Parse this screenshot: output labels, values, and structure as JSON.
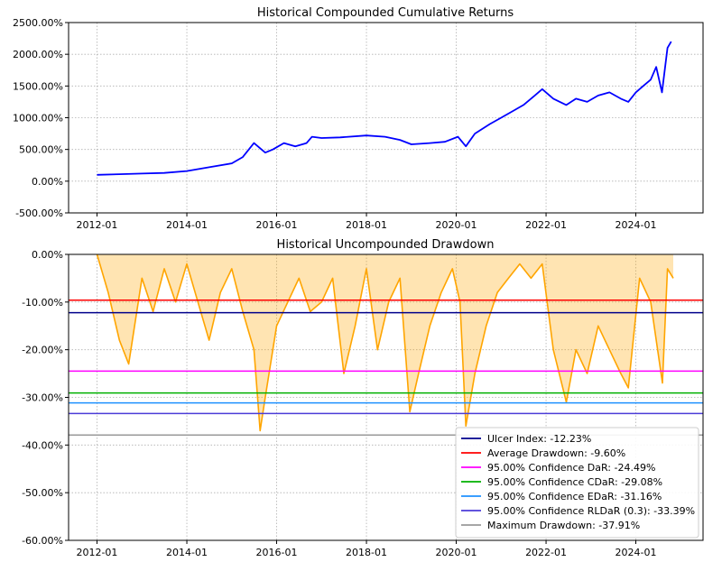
{
  "chart_data": [
    {
      "type": "line",
      "title": "Historical Compounded Cumulative Returns",
      "xlabel": "",
      "ylabel": "",
      "x_ticks": [
        "2012-01",
        "2014-01",
        "2016-01",
        "2018-01",
        "2020-01",
        "2022-01",
        "2024-01"
      ],
      "y_ticks": [
        "-500.00%",
        "0.00%",
        "500.00%",
        "1000.00%",
        "1500.00%",
        "2000.00%",
        "2500.00%"
      ],
      "ylim": [
        -500,
        2500
      ],
      "xlim": [
        "2011-05-15",
        "2025-07-01"
      ],
      "grid": true,
      "series": [
        {
          "color": "#0000ff",
          "x": [
            "2012-01-01",
            "2012-07-01",
            "2013-01-01",
            "2013-07-01",
            "2014-01-01",
            "2014-07-01",
            "2015-01-01",
            "2015-04-01",
            "2015-07-01",
            "2015-10-01",
            "2015-12-01",
            "2016-03-01",
            "2016-06-01",
            "2016-09-01",
            "2016-10-15",
            "2017-01-01",
            "2017-06-01",
            "2018-01-01",
            "2018-06-01",
            "2018-10-01",
            "2019-01-01",
            "2019-06-01",
            "2019-10-01",
            "2020-01-15",
            "2020-03-20",
            "2020-06-01",
            "2020-10-01",
            "2021-01-01",
            "2021-04-01",
            "2021-07-01",
            "2021-10-01",
            "2021-12-01",
            "2022-03-01",
            "2022-06-15",
            "2022-09-01",
            "2022-12-01",
            "2023-03-01",
            "2023-06-01",
            "2023-09-01",
            "2023-11-01",
            "2024-01-01",
            "2024-03-01",
            "2024-05-01",
            "2024-06-15",
            "2024-08-01",
            "2024-09-15",
            "2024-10-15"
          ],
          "y": [
            100,
            110,
            120,
            130,
            160,
            220,
            280,
            380,
            600,
            450,
            500,
            600,
            550,
            600,
            700,
            680,
            690,
            720,
            700,
            650,
            580,
            600,
            620,
            700,
            550,
            750,
            900,
            1000,
            1100,
            1200,
            1350,
            1450,
            1300,
            1200,
            1300,
            1250,
            1350,
            1400,
            1300,
            1250,
            1400,
            1500,
            1600,
            1800,
            1400,
            2100,
            2200
          ]
        }
      ]
    },
    {
      "type": "area",
      "title": "Historical Uncompounded Drawdown",
      "xlabel": "",
      "ylabel": "",
      "x_ticks": [
        "2012-01",
        "2014-01",
        "2016-01",
        "2018-01",
        "2020-01",
        "2022-01",
        "2024-01"
      ],
      "y_ticks": [
        "-60.00%",
        "-50.00%",
        "-40.00%",
        "-30.00%",
        "-20.00%",
        "-10.00%",
        "0.00%"
      ],
      "ylim": [
        -60,
        0
      ],
      "xlim": [
        "2011-05-15",
        "2025-07-01"
      ],
      "grid": true,
      "series": [
        {
          "color": "#ffa500",
          "x": [
            "2012-01-01",
            "2012-04-01",
            "2012-07-01",
            "2012-09-15",
            "2013-01-01",
            "2013-04-01",
            "2013-07-01",
            "2013-10-01",
            "2014-01-01",
            "2014-04-01",
            "2014-07-01",
            "2014-10-01",
            "2015-01-01",
            "2015-04-01",
            "2015-07-01",
            "2015-08-20",
            "2015-10-01",
            "2016-01-01",
            "2016-04-01",
            "2016-07-01",
            "2016-10-01",
            "2017-01-01",
            "2017-04-01",
            "2017-07-01",
            "2017-10-01",
            "2018-01-01",
            "2018-04-01",
            "2018-07-01",
            "2018-10-01",
            "2018-12-20",
            "2019-03-01",
            "2019-06-01",
            "2019-09-01",
            "2019-12-01",
            "2020-02-01",
            "2020-03-20",
            "2020-06-01",
            "2020-09-01",
            "2020-12-01",
            "2021-03-01",
            "2021-06-01",
            "2021-09-01",
            "2021-12-01",
            "2022-03-01",
            "2022-06-15",
            "2022-09-01",
            "2022-12-01",
            "2023-03-01",
            "2023-06-01",
            "2023-09-01",
            "2023-11-01",
            "2024-02-01",
            "2024-05-01",
            "2024-08-05",
            "2024-09-15",
            "2024-11-01"
          ],
          "y": [
            0,
            -8,
            -18,
            -23,
            -5,
            -12,
            -3,
            -10,
            -2,
            -10,
            -18,
            -8,
            -3,
            -12,
            -20,
            -37,
            -30,
            -15,
            -10,
            -5,
            -12,
            -10,
            -5,
            -25,
            -15,
            -3,
            -20,
            -10,
            -5,
            -33,
            -25,
            -15,
            -8,
            -3,
            -10,
            -36,
            -25,
            -15,
            -8,
            -5,
            -2,
            -5,
            -2,
            -20,
            -31,
            -20,
            -25,
            -15,
            -20,
            -25,
            -28,
            -5,
            -10,
            -27,
            -3,
            -5
          ]
        }
      ],
      "reference_lines": [
        {
          "name": "Ulcer Index: -12.23%",
          "value": -12.23,
          "color": "#00008b"
        },
        {
          "name": "Average Drawdown: -9.60%",
          "value": -9.6,
          "color": "#ff0000"
        },
        {
          "name": "95.00% Confidence DaR: -24.49%",
          "value": -24.49,
          "color": "#ff00ff"
        },
        {
          "name": "95.00% Confidence CDaR: -29.08%",
          "value": -29.08,
          "color": "#00b000"
        },
        {
          "name": "95.00% Confidence EDaR: -31.16%",
          "value": -31.16,
          "color": "#1e90ff"
        },
        {
          "name": "95.00% Confidence RLDaR (0.3): -33.39%",
          "value": -33.39,
          "color": "#4b3cd8"
        },
        {
          "name": "Maximum Drawdown: -37.91%",
          "value": -37.91,
          "color": "#999999"
        }
      ],
      "legend_position": "bottom-right"
    }
  ]
}
